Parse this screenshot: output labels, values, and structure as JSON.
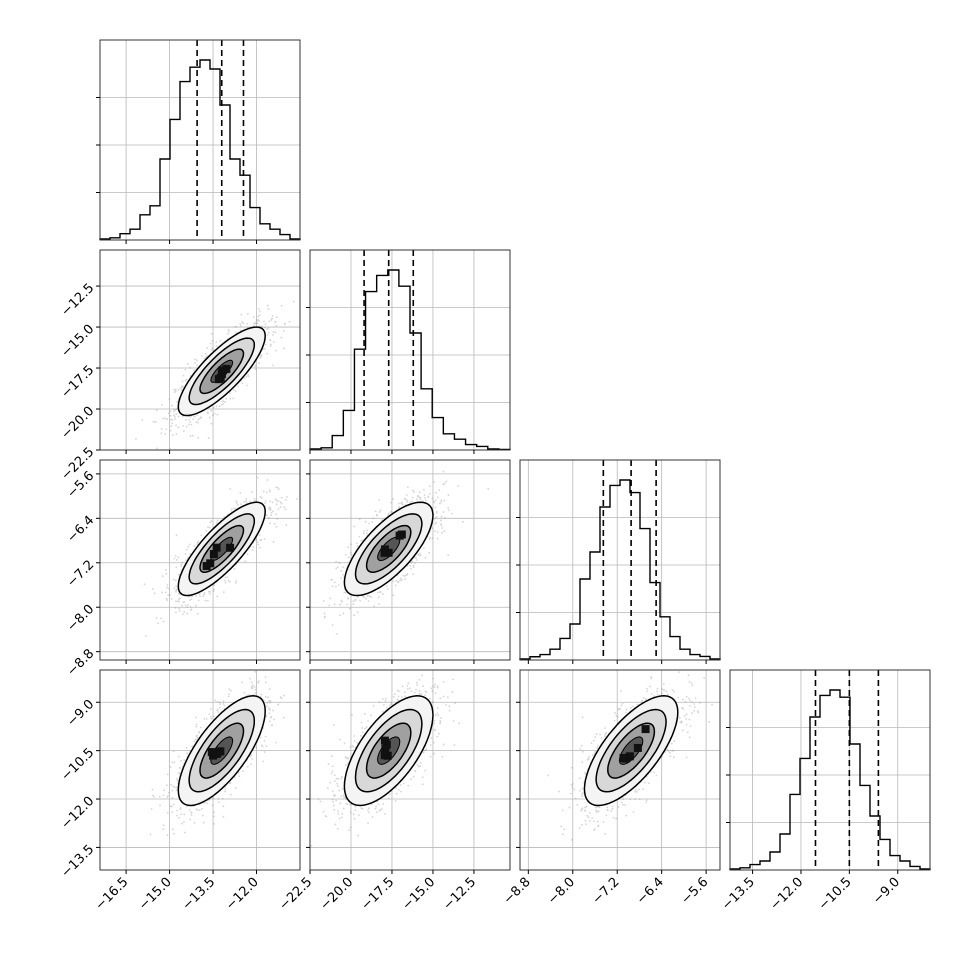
{
  "chart_data": {
    "type": "corner",
    "grid": true,
    "parameters": [
      {
        "range": [
          -17.4,
          -10.5
        ],
        "ticks": [
          -16.5,
          -15.0,
          -13.5,
          -12.0
        ],
        "tick_labels": [
          "−16.5",
          "−15.0",
          "−13.5",
          "−12.0"
        ],
        "quantiles": [
          -14.05,
          -13.2,
          -12.45
        ],
        "hist_y": [
          0.006,
          0.012,
          0.035,
          0.06,
          0.14,
          0.19,
          0.45,
          0.67,
          0.88,
          0.96,
          1.0,
          0.95,
          0.75,
          0.45,
          0.36,
          0.18,
          0.09,
          0.06,
          0.03,
          0.006
        ]
      },
      {
        "range": [
          -22.5,
          -10.3
        ],
        "ticks": [
          -22.5,
          -20.0,
          -17.5,
          -15.0,
          -12.5
        ],
        "tick_labels": [
          "−22.5",
          "−20.0",
          "−17.5",
          "−15.0",
          "−12.5"
        ],
        "quantiles": [
          -19.2,
          -17.7,
          -16.2
        ],
        "hist_y": [
          0.006,
          0.012,
          0.08,
          0.22,
          0.56,
          0.88,
          0.97,
          1.0,
          0.91,
          0.65,
          0.34,
          0.18,
          0.09,
          0.06,
          0.03,
          0.02,
          0.006,
          0.003
        ]
      },
      {
        "range": [
          -8.95,
          -5.35
        ],
        "ticks": [
          -8.8,
          -8.0,
          -7.2,
          -6.4,
          -5.6
        ],
        "tick_labels": [
          "−8.8",
          "−8.0",
          "−7.2",
          "−6.4",
          "−5.6"
        ],
        "quantiles": [
          -7.45,
          -6.95,
          -6.5
        ],
        "hist_y": [
          0.006,
          0.018,
          0.03,
          0.06,
          0.12,
          0.2,
          0.45,
          0.6,
          0.85,
          0.97,
          1.0,
          0.93,
          0.73,
          0.43,
          0.24,
          0.13,
          0.06,
          0.03,
          0.02,
          0.006
        ]
      },
      {
        "range": [
          -14.2,
          -8.0
        ],
        "ticks": [
          -13.5,
          -12.0,
          -10.5,
          -9.0
        ],
        "tick_labels": [
          "−13.5",
          "−12.0",
          "−10.5",
          "−9.0"
        ],
        "quantiles": [
          -11.55,
          -10.5,
          -9.6
        ],
        "hist_y": [
          0.006,
          0.012,
          0.03,
          0.05,
          0.1,
          0.2,
          0.42,
          0.62,
          0.85,
          0.97,
          1.0,
          0.96,
          0.7,
          0.47,
          0.3,
          0.17,
          0.08,
          0.05,
          0.02,
          0.006
        ]
      }
    ],
    "pairs": [
      {
        "row": 1,
        "col": 0,
        "mean": [
          -13.2,
          -17.7
        ],
        "sd": [
          0.75,
          1.35
        ],
        "rho": 0.8
      },
      {
        "row": 2,
        "col": 0,
        "mean": [
          -13.2,
          -6.95
        ],
        "sd": [
          0.75,
          0.42
        ],
        "rho": 0.8
      },
      {
        "row": 2,
        "col": 1,
        "mean": [
          -17.7,
          -6.95
        ],
        "sd": [
          1.35,
          0.42
        ],
        "rho": 0.72
      },
      {
        "row": 3,
        "col": 0,
        "mean": [
          -13.2,
          -10.5
        ],
        "sd": [
          0.75,
          0.85
        ],
        "rho": 0.72
      },
      {
        "row": 3,
        "col": 1,
        "mean": [
          -17.7,
          -10.5
        ],
        "sd": [
          1.35,
          0.85
        ],
        "rho": 0.65
      },
      {
        "row": 3,
        "col": 2,
        "mean": [
          -6.95,
          -10.5
        ],
        "sd": [
          0.42,
          0.85
        ],
        "rho": 0.7
      }
    ],
    "contour_levels_sigma": [
      0.5,
      1.0,
      1.5,
      2.0
    ]
  }
}
